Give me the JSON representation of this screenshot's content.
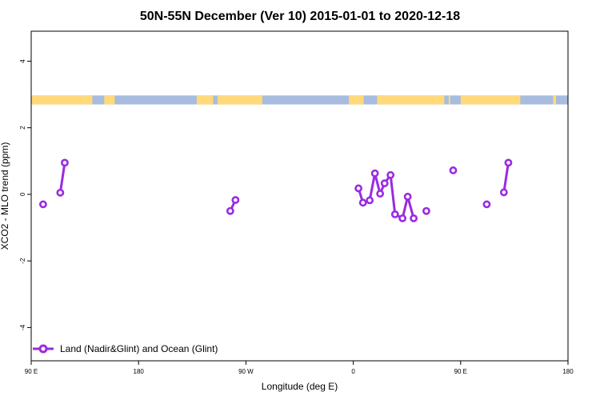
{
  "chart_data": {
    "type": "line",
    "title": "50N-55N December (Ver 10)   2015-01-01 to 2020-12-18",
    "xlabel": "Longitude (deg E)",
    "ylabel": "XCO2 - MLO trend (ppm)",
    "xlim": [
      90,
      450
    ],
    "ylim": [
      -5,
      4.9
    ],
    "x_ticks": [
      90,
      162,
      234,
      306,
      378,
      450
    ],
    "x_tick_labels": [
      "90 E",
      "180",
      "90 W",
      "0",
      "90 E",
      "180"
    ],
    "y_ticks": [
      -4,
      -2,
      0,
      2,
      4
    ],
    "y_tick_labels": [
      "-4",
      "-2",
      "0",
      "2",
      "4"
    ],
    "grid": false,
    "legend_position": "bottom-left",
    "colors": {
      "series": "#9a2be2",
      "land": "#ffd97a",
      "ocean": "#a7bcde"
    },
    "series": [
      {
        "name": "Land (Nadir&Glint) and Ocean (Glint)",
        "segments": [
          [
            [
              98,
              -0.3
            ]
          ],
          [
            [
              109.5,
              0.05
            ],
            [
              112.5,
              0.95
            ]
          ],
          [
            [
              223.5,
              -0.5
            ],
            [
              227,
              -0.17
            ]
          ],
          [
            [
              309.5,
              0.18
            ],
            [
              312.5,
              -0.25
            ],
            [
              317,
              -0.18
            ],
            [
              320.5,
              0.63
            ],
            [
              324,
              0.02
            ],
            [
              327,
              0.33
            ],
            [
              331,
              0.58
            ],
            [
              334,
              -0.6
            ],
            [
              339,
              -0.72
            ],
            [
              342.5,
              -0.07
            ],
            [
              346.5,
              -0.72
            ]
          ],
          [
            [
              355,
              -0.5
            ]
          ],
          [
            [
              373,
              0.72
            ]
          ],
          [
            [
              395.5,
              -0.3
            ]
          ],
          [
            [
              407,
              0.06
            ],
            [
              410,
              0.95
            ]
          ]
        ]
      }
    ],
    "landmask_strip": {
      "y_range": [
        2.7,
        2.97
      ],
      "land_intervals": [
        [
          90,
          131
        ],
        [
          139,
          146
        ],
        [
          201,
          212
        ],
        [
          215,
          245
        ],
        [
          303,
          313
        ],
        [
          322,
          367
        ],
        [
          370,
          371
        ],
        [
          378,
          418
        ],
        [
          440,
          442
        ]
      ]
    }
  }
}
